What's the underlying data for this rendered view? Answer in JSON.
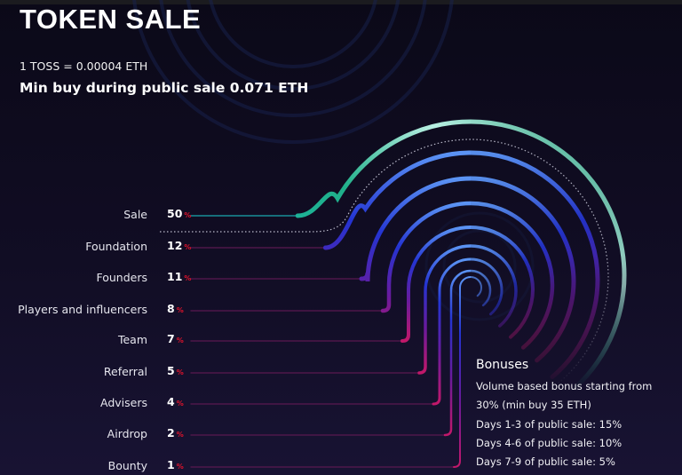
{
  "header": {
    "title": "TOKEN SALE",
    "rate": "1 TOSS = 0.00004 ETH",
    "min_buy": "Min buy during public sale 0.071 ETH"
  },
  "allocation": [
    {
      "label": "Sale",
      "value": "50",
      "unit": "%"
    },
    {
      "label": "Foundation",
      "value": "12",
      "unit": "%"
    },
    {
      "label": "Founders",
      "value": "11",
      "unit": "%"
    },
    {
      "label": "Players and influencers",
      "value": "8",
      "unit": "%"
    },
    {
      "label": "Team",
      "value": "7",
      "unit": "%"
    },
    {
      "label": "Referral",
      "value": "5",
      "unit": "%"
    },
    {
      "label": "Advisers",
      "value": "4",
      "unit": "%"
    },
    {
      "label": "Airdrop",
      "value": "2",
      "unit": "%"
    },
    {
      "label": "Bounty",
      "value": "1",
      "unit": "%"
    }
  ],
  "bonuses": {
    "title": "Bonuses",
    "lines": [
      "Volume based bonus starting from",
      "30% (min buy 35 ETH)",
      "Days 1-3 of public sale: 15%",
      "Days 4-6 of public sale: 10%",
      "Days 7-9 of public sale: 5%"
    ]
  },
  "colors": {
    "sale_arc": "#1fc4a8",
    "sale_arc_highlight": "#b8efe2",
    "arc_top": "#3a6cf0",
    "arc_mid": "#2430d0",
    "arc_bottom": "#c2186a",
    "percent": "#e0132c"
  }
}
